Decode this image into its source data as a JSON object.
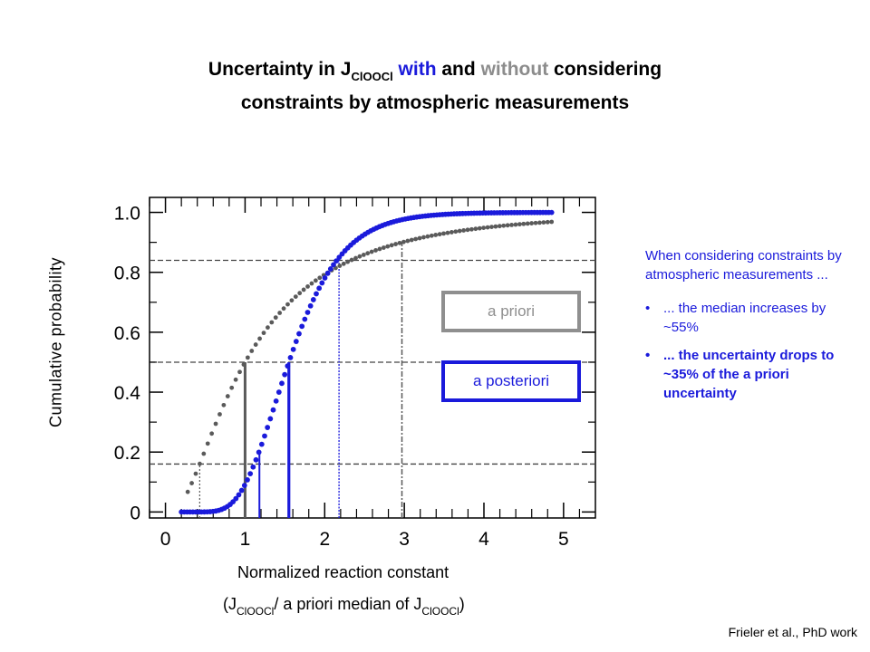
{
  "title": {
    "part1": "Uncertainty in J",
    "sub": "ClOOCl",
    "space1": " ",
    "with_word": "with",
    "and_word": " and ",
    "without_word": "without",
    "rest1": " considering",
    "line2": "constraints by atmospheric measurements"
  },
  "colors": {
    "with": "#1a1adb",
    "without": "#8c8c8c",
    "prior_points": "#5a5a5a",
    "posterior_points": "#1a1adb"
  },
  "chart_data": {
    "type": "scatter",
    "xlabel_line1": "Normalized reaction constant",
    "xlabel_line2": {
      "open": "(J",
      "sub1": "ClOOCl",
      "mid": "/ a priori median of J",
      "sub2": "ClOOCl",
      "close": ")"
    },
    "ylabel": "Cumulative probability",
    "xlim": [
      -0.2,
      5.4
    ],
    "ylim": [
      -0.02,
      1.05
    ],
    "x_ticks": [
      0,
      1,
      2,
      3,
      4,
      5
    ],
    "x_tick_labels": [
      "0",
      "1",
      "2",
      "3",
      "4",
      "5"
    ],
    "y_ticks": [
      0,
      0.2,
      0.4,
      0.6,
      0.8,
      1.0
    ],
    "y_tick_labels": [
      "0",
      "0.2",
      "0.4",
      "0.6",
      "0.8",
      "1.0"
    ],
    "series": [
      {
        "name": "a priori",
        "style": "cdf_points",
        "median": 1.0,
        "sigma": 0.85,
        "x_range": [
          0.28,
          4.85
        ],
        "n_points": 92,
        "markers": {
          "p16": 0.43,
          "p50": 1.0,
          "p84": 2.97
        }
      },
      {
        "name": "a posteriori",
        "style": "cdf_points",
        "median": 1.55,
        "sigma": 0.33,
        "x_range": [
          0.2,
          4.85
        ],
        "n_points": 130,
        "markers": {
          "p16": 1.18,
          "p50": 1.55,
          "p84": 2.18
        }
      }
    ],
    "reference_lines_y": [
      0.16,
      0.5,
      0.84
    ],
    "legend": [
      "a priori",
      "a posteriori"
    ]
  },
  "notes": {
    "intro": "When considering constraints by atmospheric measurements ...",
    "bullet_char": "•",
    "bullet1": "... the median increases by ~55%",
    "bullet2": "... the uncertainty drops to ~35% of the a priori uncertainty"
  },
  "credit": "Frieler et al., PhD work"
}
